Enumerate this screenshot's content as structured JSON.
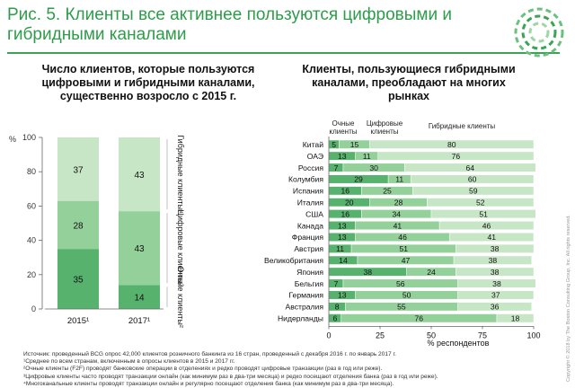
{
  "header": {
    "figure_label": "Рис. 5.",
    "title": "Клиенты все активнее пользуются цифровыми и гибридными каналами"
  },
  "left_panel": {
    "title": "Число клиентов, которые пользуются цифровыми и гибридными каналами, существенно возросло с 2015 г."
  },
  "right_panel": {
    "title": "Клиенты, пользующиеся гибридными каналами, преобладают на многих рынках"
  },
  "colors": {
    "hybrid": "#c7e6c5",
    "digital": "#93d09a",
    "offline": "#56b26c",
    "accent": "#2e9c4a"
  },
  "chart_data": [
    {
      "type": "bar",
      "stacked": true,
      "orientation": "vertical",
      "ylabel": "%",
      "ylim": [
        0,
        100
      ],
      "yticks": [
        0,
        20,
        40,
        60,
        80,
        100
      ],
      "categories": [
        "2015",
        "2017"
      ],
      "category_labels": [
        "2015¹",
        "2017¹"
      ],
      "series": [
        {
          "name": "Очные клиенты²",
          "values": [
            35,
            14
          ]
        },
        {
          "name": "Цифровые клиенты³",
          "values": [
            28,
            43
          ]
        },
        {
          "name": "Гибридные клиенты⁴",
          "values": [
            37,
            43
          ]
        }
      ],
      "legend_labels": [
        "Очные клиенты²",
        "Цифровые клиенты³",
        "Гибридные клиенты⁴"
      ]
    },
    {
      "type": "bar",
      "stacked": true,
      "orientation": "horizontal",
      "xlabel": "% респондентов",
      "xlim": [
        0,
        100
      ],
      "xticks": [
        0,
        25,
        50,
        75,
        100
      ],
      "column_headers": [
        "Очные клиенты",
        "Цифровые клиенты",
        "Гибридные клиенты"
      ],
      "categories": [
        "Китай",
        "ОАЭ",
        "Россия",
        "Колумбия",
        "Испания",
        "Италия",
        "США",
        "Канада",
        "Франция",
        "Австрия",
        "Великобритания",
        "Япония",
        "Бельгия",
        "Германия",
        "Австралия",
        "Нидерланды"
      ],
      "series": [
        {
          "name": "Очные клиенты",
          "values": [
            5,
            13,
            7,
            29,
            16,
            20,
            16,
            13,
            13,
            11,
            14,
            38,
            7,
            13,
            8,
            6
          ]
        },
        {
          "name": "Цифровые клиенты",
          "values": [
            15,
            11,
            30,
            11,
            25,
            28,
            34,
            41,
            46,
            51,
            47,
            24,
            56,
            50,
            55,
            76
          ]
        },
        {
          "name": "Гибридные клиенты",
          "values": [
            80,
            76,
            64,
            60,
            59,
            52,
            51,
            46,
            41,
            38,
            38,
            38,
            38,
            37,
            36,
            18
          ]
        }
      ]
    }
  ],
  "notes": [
    "Источник: проведенный BCG опрос 42,000 клиентов розничного банкинга из 16 стран, проведенный с декабря 2016 г. по январь 2017 г.",
    "¹Среднее по всем странам, включенным в опросы клиентов в 2015 и 2017 гг.",
    "²Очные клиенты (F2F) проводят банковские операции в отделениях и редко проводят цифровые транзакции (раз в год или реже).",
    "³Цифровые клиенты часто проводят транзакции онлайн (как минимум раз в два-три месяца) и редко посещают отделения банка (раз в год или реже).",
    "⁴Многоканальные клиенты проводят транзакции онлайн и регулярно посещают отделения банка (как минимум раз в два-три месяца)."
  ],
  "copyright": "Copyright © 2018 by The Boston Consulting Group, Inc. All rights reserved."
}
